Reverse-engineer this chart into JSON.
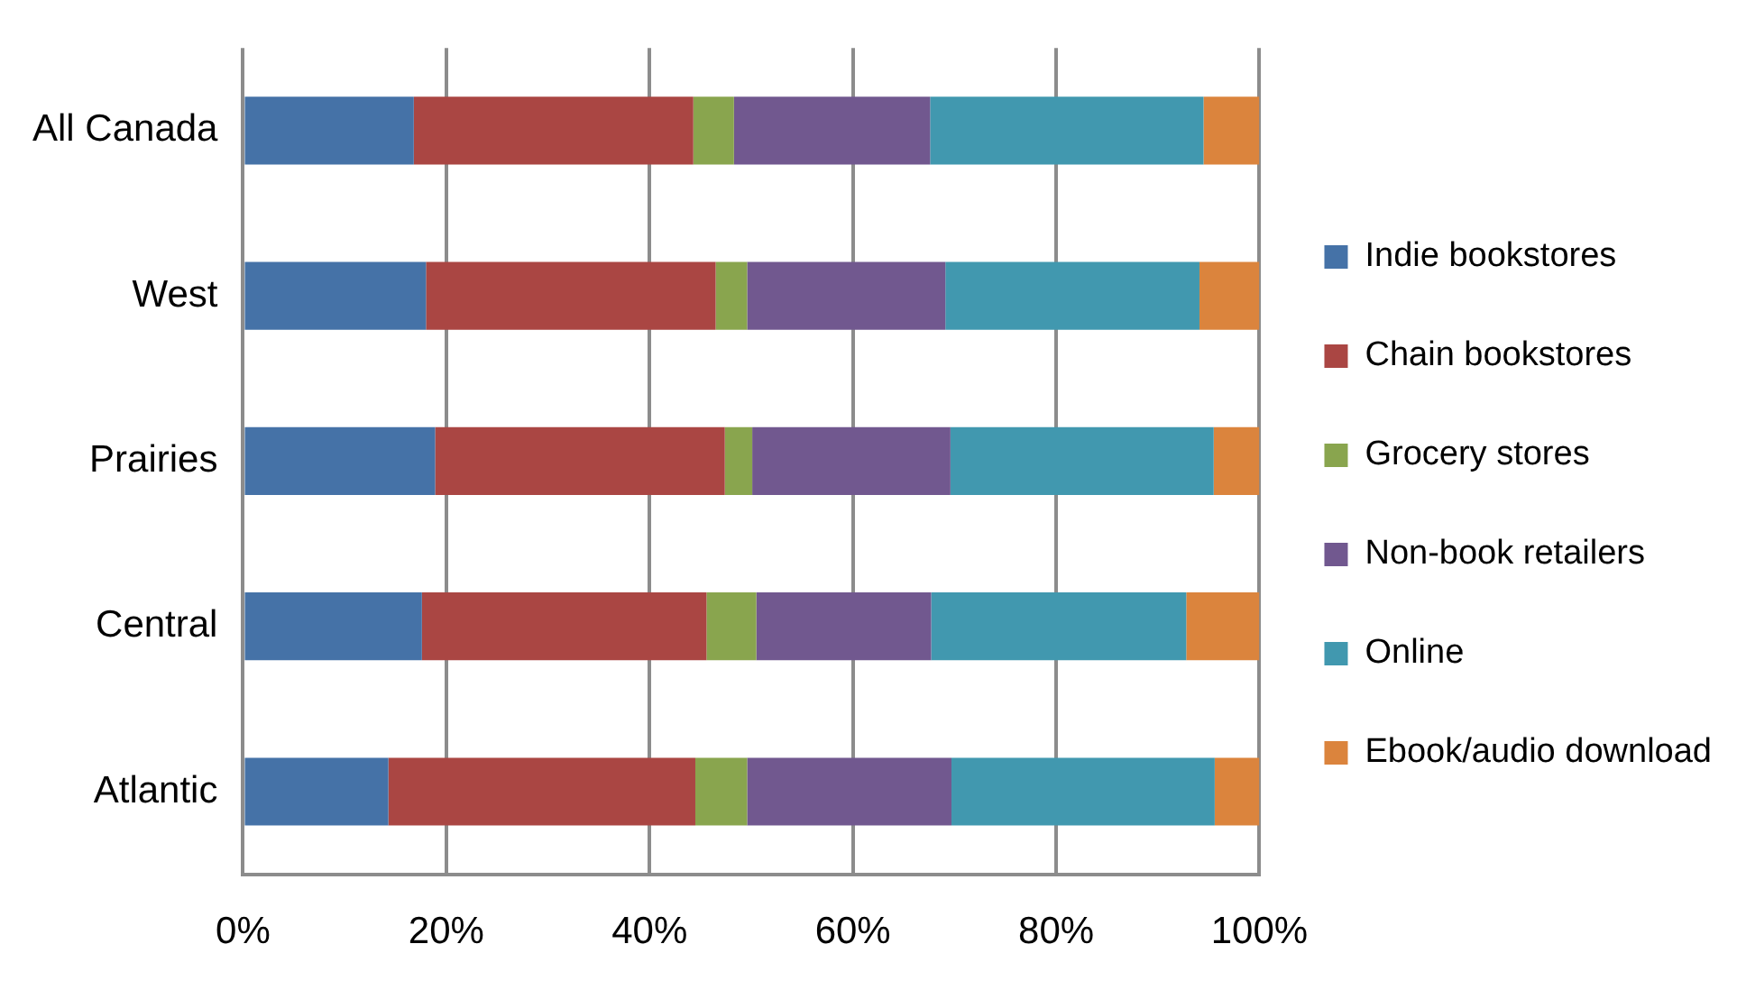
{
  "chart_data": {
    "type": "bar",
    "orientation": "horizontal",
    "stacked": true,
    "categories": [
      "All Canada",
      "West",
      "Prairies",
      "Central",
      "Atlantic"
    ],
    "series": [
      {
        "name": "Indie bookstores",
        "color": "#4572a7",
        "values": [
          16.8,
          18.0,
          18.9,
          17.6,
          14.3
        ]
      },
      {
        "name": "Chain bookstores",
        "color": "#aa4643",
        "values": [
          27.5,
          28.5,
          28.5,
          28.0,
          30.2
        ]
      },
      {
        "name": "Grocery stores",
        "color": "#89a54e",
        "values": [
          4.0,
          3.1,
          2.7,
          4.9,
          5.1
        ]
      },
      {
        "name": "Non-book retailers",
        "color": "#71588f",
        "values": [
          19.3,
          19.5,
          19.5,
          17.2,
          20.1
        ]
      },
      {
        "name": "Online",
        "color": "#4198af",
        "values": [
          26.9,
          25.0,
          25.9,
          25.1,
          25.9
        ]
      },
      {
        "name": "Ebook/audio download",
        "color": "#db843d",
        "values": [
          5.5,
          5.9,
          4.5,
          7.2,
          4.4
        ]
      }
    ],
    "xlim": [
      0,
      100
    ],
    "xticks": [
      {
        "value": 0,
        "label": "0%"
      },
      {
        "value": 20,
        "label": "20%"
      },
      {
        "value": 40,
        "label": "40%"
      },
      {
        "value": 60,
        "label": "60%"
      },
      {
        "value": 80,
        "label": "80%"
      },
      {
        "value": 100,
        "label": "100%"
      }
    ],
    "grid": "x",
    "legend": "right"
  }
}
